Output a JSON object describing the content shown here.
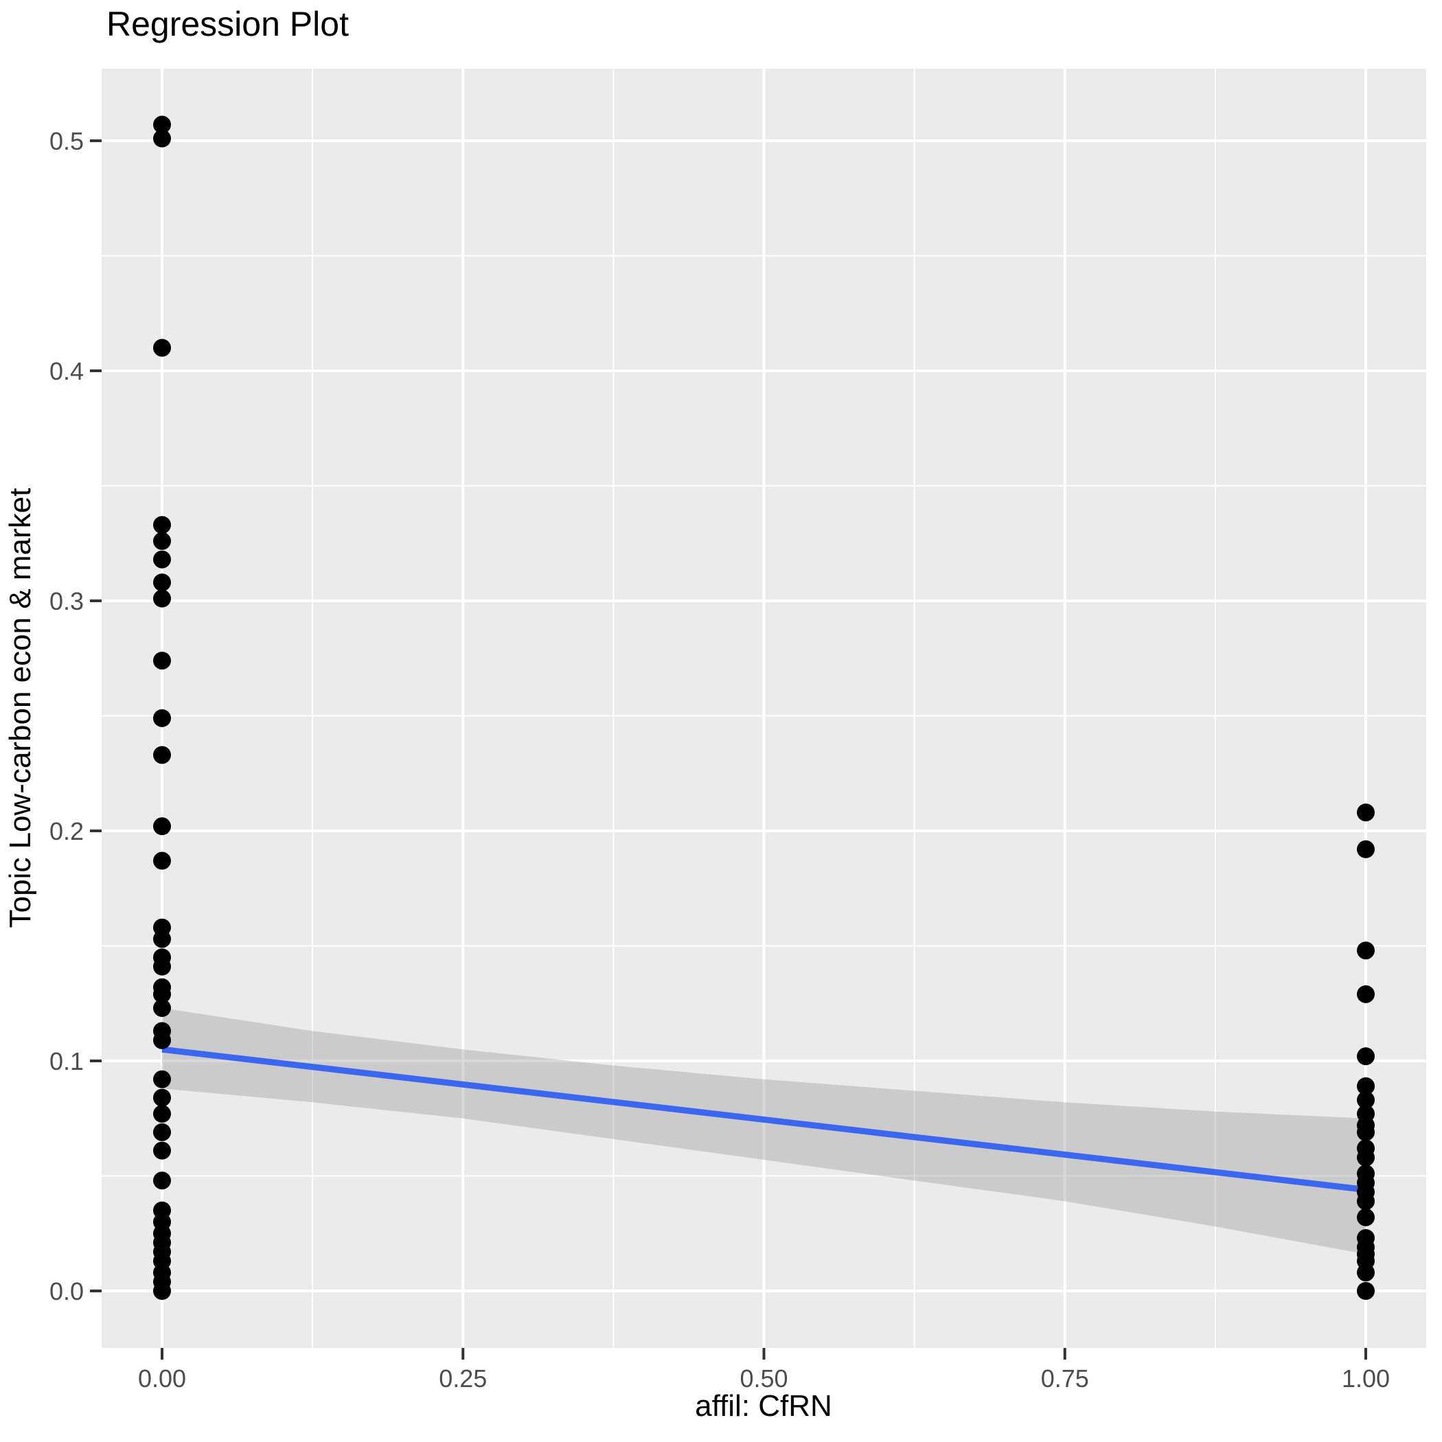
{
  "title": "Regression Plot",
  "axes": {
    "x": {
      "label": "affil: CfRN",
      "tick_labels": [
        "0.00",
        "0.25",
        "0.50",
        "0.75",
        "1.00"
      ],
      "tick_values": [
        0,
        0.25,
        0.5,
        0.75,
        1
      ],
      "minor_ticks": [
        0.125,
        0.375,
        0.625,
        0.875
      ],
      "range": [
        -0.05,
        1.05
      ]
    },
    "y": {
      "label": "Topic Low-carbon econ & market",
      "tick_labels": [
        "0.0",
        "0.1",
        "0.2",
        "0.3",
        "0.4",
        "0.5"
      ],
      "tick_values": [
        0,
        0.1,
        0.2,
        0.3,
        0.4,
        0.5
      ],
      "minor_ticks": [
        0.05,
        0.15,
        0.25,
        0.35,
        0.45
      ],
      "range": [
        -0.025,
        0.531
      ]
    }
  },
  "chart_data": {
    "type": "scatter",
    "title": "Regression Plot",
    "xlabel": "affil: CfRN",
    "ylabel": "Topic Low-carbon econ & market",
    "xlim": [
      -0.05,
      1.05
    ],
    "ylim": [
      -0.025,
      0.531
    ],
    "grid": true,
    "legend": false,
    "series": [
      {
        "name": "points-affil-0",
        "type": "points",
        "x": 0,
        "y": [
          0.507,
          0.501,
          0.41,
          0.333,
          0.326,
          0.318,
          0.308,
          0.301,
          0.274,
          0.249,
          0.233,
          0.202,
          0.187,
          0.158,
          0.153,
          0.145,
          0.141,
          0.132,
          0.129,
          0.123,
          0.113,
          0.109,
          0.092,
          0.084,
          0.077,
          0.069,
          0.061,
          0.048,
          0.035,
          0.03,
          0.025,
          0.021,
          0.017,
          0.013,
          0.008,
          0.004,
          0.0
        ]
      },
      {
        "name": "points-affil-1",
        "type": "points",
        "x": 1,
        "y": [
          0.208,
          0.192,
          0.148,
          0.129,
          0.102,
          0.089,
          0.083,
          0.077,
          0.072,
          0.069,
          0.062,
          0.058,
          0.051,
          0.047,
          0.043,
          0.039,
          0.032,
          0.023,
          0.019,
          0.016,
          0.013,
          0.008,
          0.0
        ]
      },
      {
        "name": "regression-line",
        "type": "line",
        "points": [
          [
            0,
            0.105
          ],
          [
            1,
            0.044
          ]
        ]
      },
      {
        "name": "confidence-band",
        "type": "area",
        "x": [
          0,
          0.125,
          0.25,
          0.375,
          0.5,
          0.625,
          0.75,
          0.875,
          1
        ],
        "upper": [
          0.123,
          0.113,
          0.105,
          0.098,
          0.092,
          0.087,
          0.082,
          0.078,
          0.075
        ],
        "lower": [
          0.088,
          0.082,
          0.075,
          0.066,
          0.057,
          0.048,
          0.039,
          0.028,
          0.016
        ]
      }
    ]
  },
  "colors": {
    "panel_background": "#EBEBEB",
    "grid_line": "#FFFFFF",
    "point": "#000000",
    "regression_line": "#3B66F0",
    "confidence_band": "#999999",
    "confidence_band_opacity": 0.38,
    "tick_text": "#4D4D4D",
    "tick_mark": "#333333",
    "title_text": "#000000"
  }
}
